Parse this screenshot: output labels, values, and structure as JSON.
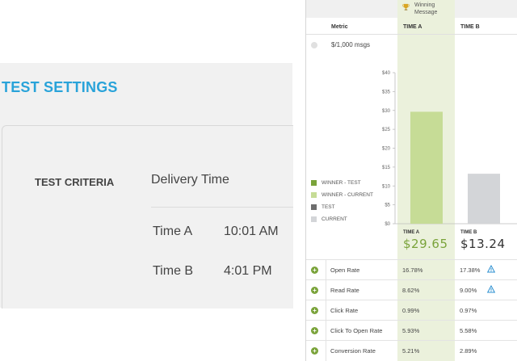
{
  "settings": {
    "title": "TEST SETTINGS",
    "criteria_label": "TEST CRITERIA",
    "criteria_value": "Delivery Time",
    "times": [
      {
        "label": "Time A",
        "time": "10:01 AM"
      },
      {
        "label": "Time B",
        "time": "4:01 PM"
      }
    ]
  },
  "report": {
    "winner_badge": [
      "Winning",
      "Message"
    ],
    "headers": {
      "metric": "Metric",
      "a": "TIME A",
      "b": "TIME B"
    },
    "top_metric": "$/1,000 msgs",
    "legend": [
      {
        "label": "WINNER - TEST",
        "color": "#7aa33a"
      },
      {
        "label": "WINNER - CURRENT",
        "color": "#c6dc96"
      },
      {
        "label": "TEST",
        "color": "#6e6e6e"
      },
      {
        "label": "CURRENT",
        "color": "#d3d5d8"
      }
    ],
    "columns": [
      {
        "label": "TIME A",
        "value": "$29.65",
        "color": "#7aa33a"
      },
      {
        "label": "TIME B",
        "value": "$13.24",
        "color": "#333333"
      }
    ],
    "rows": [
      {
        "label": "Open Rate",
        "a": "16.78%",
        "b": "17.38%",
        "warn": true
      },
      {
        "label": "Read Rate",
        "a": "8.62%",
        "b": "9.00%",
        "warn": true
      },
      {
        "label": "Click Rate",
        "a": "0.99%",
        "b": "0.97%",
        "warn": false
      },
      {
        "label": "Click To Open Rate",
        "a": "5.93%",
        "b": "5.58%",
        "warn": false
      },
      {
        "label": "Conversion Rate",
        "a": "5.21%",
        "b": "2.89%",
        "warn": false
      }
    ]
  },
  "chart_data": {
    "type": "bar",
    "categories": [
      "TIME A",
      "TIME B"
    ],
    "values": [
      29.65,
      13.24
    ],
    "ylim": [
      0,
      40
    ],
    "yticks": [
      "$0",
      "$5",
      "$10",
      "$15",
      "$20",
      "$25",
      "$30",
      "$35",
      "$40"
    ],
    "bar_colors": [
      "#c6dc96",
      "#d3d5d8"
    ],
    "grid": false
  }
}
